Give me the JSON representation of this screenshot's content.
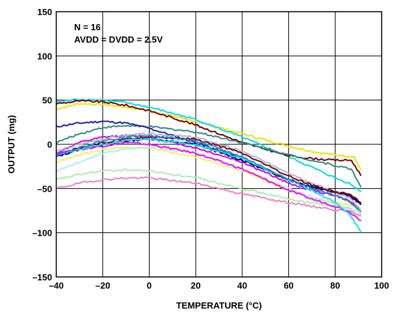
{
  "chart_data": {
    "type": "line",
    "title": "",
    "xlabel": "TEMPERATURE (°C)",
    "ylabel": "OUTPUT (mg)",
    "xlim": [
      -40,
      100
    ],
    "ylim": [
      -150,
      150
    ],
    "xticks": [
      -40,
      -20,
      0,
      20,
      40,
      60,
      80,
      100
    ],
    "yticks": [
      -150,
      -100,
      -50,
      0,
      50,
      100,
      150
    ],
    "xtick_labels": [
      "–40",
      "–20",
      "0",
      "20",
      "40",
      "60",
      "80",
      "100"
    ],
    "ytick_labels": [
      "–150",
      "–100",
      "–50",
      "0",
      "50",
      "100",
      "150"
    ],
    "grid": true,
    "annotations": [
      "N = 16",
      "AVDD = DVDD = 2.5V"
    ],
    "series": [
      {
        "color": "#e6e600",
        "points": [
          [
            -40,
            40
          ],
          [
            -30,
            46
          ],
          [
            -20,
            45
          ],
          [
            -10,
            42
          ],
          [
            0,
            38
          ],
          [
            20,
            26
          ],
          [
            40,
            12
          ],
          [
            60,
            -2
          ],
          [
            70,
            -8
          ],
          [
            80,
            -12
          ],
          [
            88,
            -14
          ],
          [
            91,
            -28
          ]
        ]
      },
      {
        "color": "#00d8f0",
        "points": [
          [
            -40,
            48
          ],
          [
            -30,
            51
          ],
          [
            -20,
            50
          ],
          [
            -10,
            47
          ],
          [
            0,
            42
          ],
          [
            20,
            28
          ],
          [
            40,
            8
          ],
          [
            60,
            -14
          ],
          [
            70,
            -26
          ],
          [
            80,
            -38
          ],
          [
            86,
            -44
          ],
          [
            91,
            -53
          ]
        ]
      },
      {
        "color": "#7a0000",
        "points": [
          [
            -40,
            46
          ],
          [
            -30,
            49
          ],
          [
            -20,
            48
          ],
          [
            -10,
            44
          ],
          [
            0,
            38
          ],
          [
            20,
            22
          ],
          [
            40,
            2
          ],
          [
            60,
            -13
          ],
          [
            70,
            -16
          ],
          [
            80,
            -18
          ],
          [
            87,
            -18
          ],
          [
            91,
            -35
          ]
        ]
      },
      {
        "color": "#2e8b86",
        "points": [
          [
            -40,
            2
          ],
          [
            -30,
            12
          ],
          [
            -20,
            19
          ],
          [
            -10,
            21
          ],
          [
            0,
            20
          ],
          [
            20,
            14
          ],
          [
            40,
            2
          ],
          [
            60,
            -12
          ],
          [
            70,
            -18
          ],
          [
            80,
            -24
          ],
          [
            87,
            -28
          ],
          [
            91,
            -48
          ]
        ]
      },
      {
        "color": "#1e1eb4",
        "points": [
          [
            -40,
            20
          ],
          [
            -30,
            24
          ],
          [
            -20,
            26
          ],
          [
            -10,
            24
          ],
          [
            0,
            18
          ],
          [
            20,
            2
          ],
          [
            40,
            -16
          ],
          [
            60,
            -40
          ],
          [
            70,
            -48
          ],
          [
            80,
            -54
          ],
          [
            86,
            -58
          ],
          [
            91,
            -66
          ]
        ]
      },
      {
        "color": "#d400d4",
        "points": [
          [
            -40,
            -10
          ],
          [
            -30,
            2
          ],
          [
            -20,
            8
          ],
          [
            -10,
            10
          ],
          [
            0,
            8
          ],
          [
            20,
            -4
          ],
          [
            40,
            -20
          ],
          [
            60,
            -44
          ],
          [
            70,
            -52
          ],
          [
            80,
            -58
          ],
          [
            86,
            -64
          ],
          [
            91,
            -74
          ]
        ]
      },
      {
        "color": "#000070",
        "points": [
          [
            -40,
            -14
          ],
          [
            -30,
            -6
          ],
          [
            -20,
            0
          ],
          [
            -10,
            4
          ],
          [
            0,
            6
          ],
          [
            20,
            0
          ],
          [
            40,
            -18
          ],
          [
            60,
            -40
          ],
          [
            70,
            -48
          ],
          [
            80,
            -54
          ],
          [
            86,
            -58
          ],
          [
            91,
            -68
          ]
        ]
      },
      {
        "color": "#b0b0e6",
        "points": [
          [
            -40,
            -8
          ],
          [
            -30,
            0
          ],
          [
            -20,
            6
          ],
          [
            -10,
            10
          ],
          [
            0,
            12
          ],
          [
            20,
            8
          ],
          [
            40,
            -8
          ],
          [
            60,
            -32
          ],
          [
            70,
            -44
          ],
          [
            80,
            -54
          ],
          [
            86,
            -60
          ],
          [
            91,
            -74
          ]
        ]
      },
      {
        "color": "#800000",
        "points": [
          [
            -40,
            -12
          ],
          [
            -30,
            -4
          ],
          [
            -20,
            2
          ],
          [
            -10,
            6
          ],
          [
            0,
            8
          ],
          [
            20,
            6
          ],
          [
            40,
            -10
          ],
          [
            60,
            -36
          ],
          [
            70,
            -46
          ],
          [
            80,
            -54
          ],
          [
            86,
            -56
          ],
          [
            91,
            -66
          ]
        ]
      },
      {
        "color": "#f0f060",
        "points": [
          [
            -40,
            -20
          ],
          [
            -30,
            -12
          ],
          [
            -20,
            -6
          ],
          [
            -10,
            -3
          ],
          [
            0,
            -4
          ],
          [
            20,
            -14
          ],
          [
            40,
            -30
          ],
          [
            60,
            -52
          ],
          [
            70,
            -60
          ],
          [
            80,
            -66
          ],
          [
            86,
            -68
          ],
          [
            91,
            -74
          ]
        ]
      },
      {
        "color": "#aaeef4",
        "points": [
          [
            -40,
            -30
          ],
          [
            -30,
            -20
          ],
          [
            -20,
            -10
          ],
          [
            -10,
            -5
          ],
          [
            0,
            -3
          ],
          [
            20,
            -10
          ],
          [
            40,
            -28
          ],
          [
            60,
            -50
          ],
          [
            70,
            -60
          ],
          [
            80,
            -68
          ],
          [
            86,
            -74
          ],
          [
            91,
            -82
          ]
        ]
      },
      {
        "color": "#aaf0aa",
        "points": [
          [
            -40,
            -40
          ],
          [
            -30,
            -34
          ],
          [
            -20,
            -30
          ],
          [
            -10,
            -29
          ],
          [
            0,
            -30
          ],
          [
            20,
            -38
          ],
          [
            40,
            -50
          ],
          [
            60,
            -62
          ],
          [
            70,
            -66
          ],
          [
            80,
            -70
          ],
          [
            86,
            -72
          ],
          [
            91,
            -78
          ]
        ]
      },
      {
        "color": "#f080c0",
        "points": [
          [
            -40,
            -50
          ],
          [
            -30,
            -44
          ],
          [
            -20,
            -40
          ],
          [
            -10,
            -38
          ],
          [
            0,
            -38
          ],
          [
            20,
            -44
          ],
          [
            40,
            -56
          ],
          [
            60,
            -66
          ],
          [
            70,
            -70
          ],
          [
            80,
            -74
          ],
          [
            86,
            -76
          ],
          [
            91,
            -80
          ]
        ]
      },
      {
        "color": "#ff00ff",
        "points": [
          [
            -40,
            -10
          ],
          [
            -30,
            -6
          ],
          [
            -20,
            -2
          ],
          [
            -10,
            2
          ],
          [
            0,
            0
          ],
          [
            20,
            -10
          ],
          [
            40,
            -28
          ],
          [
            60,
            -52
          ],
          [
            70,
            -62
          ],
          [
            80,
            -70
          ],
          [
            86,
            -76
          ],
          [
            91,
            -86
          ]
        ]
      },
      {
        "color": "#00e8f8",
        "points": [
          [
            -40,
            -12
          ],
          [
            -30,
            -6
          ],
          [
            -20,
            0
          ],
          [
            -10,
            4
          ],
          [
            0,
            6
          ],
          [
            20,
            0
          ],
          [
            40,
            -16
          ],
          [
            60,
            -40
          ],
          [
            70,
            -52
          ],
          [
            80,
            -66
          ],
          [
            86,
            -78
          ],
          [
            91,
            -99
          ]
        ]
      },
      {
        "color": "#1e90c8",
        "points": [
          [
            -40,
            -12
          ],
          [
            -30,
            -4
          ],
          [
            -20,
            4
          ],
          [
            -10,
            8
          ],
          [
            0,
            10
          ],
          [
            20,
            4
          ],
          [
            40,
            -14
          ],
          [
            60,
            -40
          ],
          [
            70,
            -50
          ],
          [
            80,
            -58
          ],
          [
            86,
            -64
          ],
          [
            91,
            -76
          ]
        ]
      }
    ]
  }
}
